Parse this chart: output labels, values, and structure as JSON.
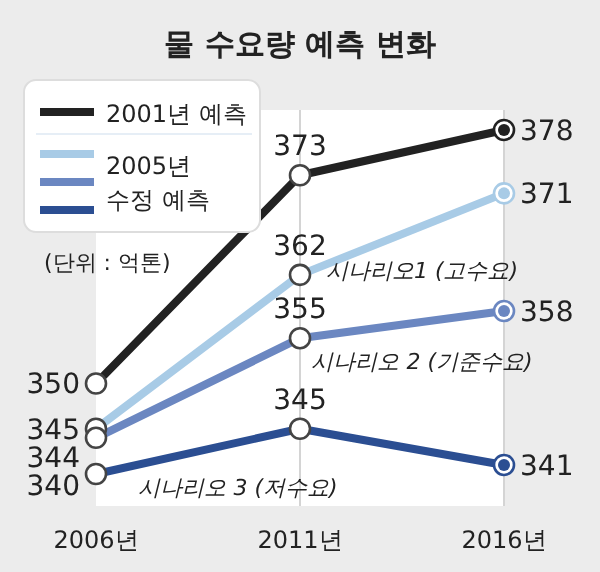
{
  "chart_data": {
    "type": "line",
    "title": "물 수요량 예측 변화",
    "categories": [
      "2006년",
      "2011년",
      "2016년"
    ],
    "series": [
      {
        "name": "2001년 예측",
        "color": "#222222",
        "values": [
          350,
          373,
          378
        ]
      },
      {
        "name": "시나리오1 (고수요)",
        "color": "#a8cbe6",
        "values": [
          345,
          362,
          371
        ]
      },
      {
        "name": "시나리오 2 (기준수요)",
        "color": "#6b87c1",
        "values": [
          344,
          355,
          358
        ]
      },
      {
        "name": "시나리오 3 (저수요)",
        "color": "#2b4e92",
        "values": [
          340,
          345,
          341
        ]
      }
    ],
    "legend_title": "2005년 수정 예측",
    "annotations": [
      "(단위 : 억톤)"
    ],
    "data_labels": true,
    "grid": "x",
    "legend": "top left",
    "marker": "circle",
    "line_style": "solid"
  }
}
